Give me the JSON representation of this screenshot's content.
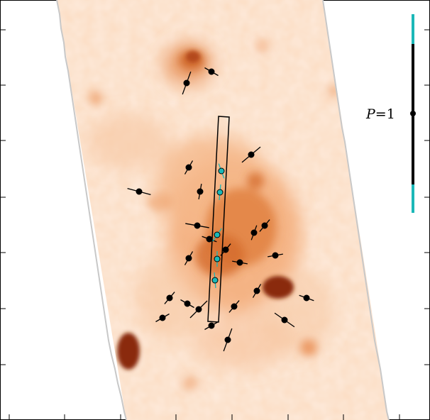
{
  "colors": {
    "background": "#ffffff",
    "map_light": "#fdeadb",
    "map_mid": "#f2a36e",
    "map_dark": "#c2521a",
    "map_darkest": "#8a2b08",
    "footprint_edge": "#c8c8c8",
    "vector_black": "#000000",
    "vector_cyan": "#1bb8b8",
    "slit": "#000000"
  },
  "scale_bar": {
    "label": "P=1",
    "label_prefix": "P",
    "label_value": "=1"
  },
  "vectors_black": [
    {
      "id": "v1",
      "angle_deg": -60,
      "length": "short"
    },
    {
      "id": "v2",
      "angle_deg": 20,
      "length": "long"
    },
    {
      "id": "v3",
      "angle_deg": 50,
      "length": "long"
    },
    {
      "id": "v4",
      "angle_deg": 30,
      "length": "short"
    },
    {
      "id": "v5",
      "angle_deg": -75,
      "length": "long"
    },
    {
      "id": "v6",
      "angle_deg": 10,
      "length": "short"
    },
    {
      "id": "v7",
      "angle_deg": -80,
      "length": "long"
    },
    {
      "id": "v8",
      "angle_deg": 40,
      "length": "short"
    },
    {
      "id": "v9",
      "angle_deg": 20,
      "length": "short"
    },
    {
      "id": "v10",
      "angle_deg": -70,
      "length": "short"
    },
    {
      "id": "v11",
      "angle_deg": 40,
      "length": "short"
    },
    {
      "id": "v12",
      "angle_deg": 30,
      "length": "short"
    },
    {
      "id": "v13",
      "angle_deg": 80,
      "length": "short"
    },
    {
      "id": "v14",
      "angle_deg": -80,
      "length": "short"
    },
    {
      "id": "v15",
      "angle_deg": 40,
      "length": "short"
    },
    {
      "id": "v16",
      "angle_deg": 30,
      "length": "short"
    },
    {
      "id": "v17",
      "angle_deg": -60,
      "length": "short"
    },
    {
      "id": "v18",
      "angle_deg": 45,
      "length": "long"
    },
    {
      "id": "v19",
      "angle_deg": 60,
      "length": "short"
    },
    {
      "id": "v20",
      "angle_deg": 40,
      "length": "short"
    },
    {
      "id": "v21",
      "angle_deg": -70,
      "length": "short"
    },
    {
      "id": "v22",
      "angle_deg": 60,
      "length": "short"
    },
    {
      "id": "v23",
      "angle_deg": -55,
      "length": "long"
    },
    {
      "id": "v24",
      "angle_deg": 20,
      "length": "long"
    }
  ],
  "vectors_cyan": [
    {
      "id": "c1",
      "angle_deg": -20,
      "length": "short"
    },
    {
      "id": "c2",
      "angle_deg": 5,
      "length": "short"
    },
    {
      "id": "c3",
      "angle_deg": 35,
      "length": "short"
    },
    {
      "id": "c4",
      "angle_deg": 0,
      "length": "short"
    },
    {
      "id": "c5",
      "angle_deg": -5,
      "length": "short"
    }
  ]
}
